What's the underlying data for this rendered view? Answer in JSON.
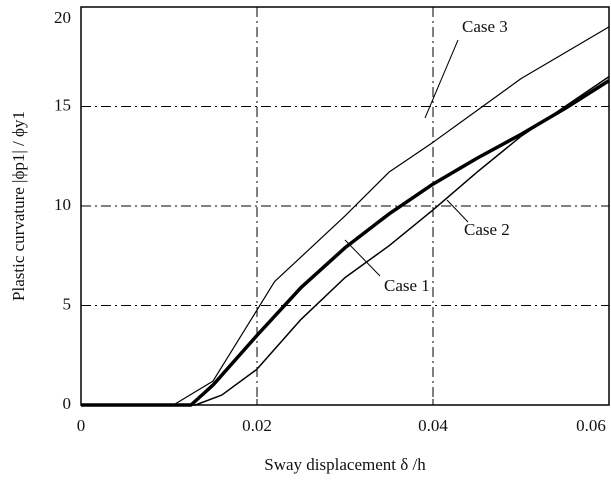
{
  "chart_data": {
    "type": "line",
    "x_label": "Sway displacement  δ /h",
    "y_label": "Plastic curvature  |ϕp1| / ϕy1",
    "xlim": [
      0,
      0.06
    ],
    "xticks": [
      0,
      0.02,
      0.04,
      0.06
    ],
    "ylim": [
      0,
      20
    ],
    "yticks": [
      0,
      5,
      10,
      15,
      20
    ],
    "grid": true,
    "series": [
      {
        "name": "Case 1",
        "color": "#000000",
        "x": [
          0,
          0.0125,
          0.015,
          0.02,
          0.025,
          0.03,
          0.035,
          0.04,
          0.045,
          0.05,
          0.055,
          0.06
        ],
        "values": [
          0,
          0,
          1.0,
          3.5,
          5.9,
          7.9,
          9.6,
          11.1,
          12.4,
          13.6,
          14.9,
          16.3
        ]
      },
      {
        "name": "Case 2",
        "color": "#000000",
        "x": [
          0,
          0.013,
          0.016,
          0.02,
          0.025,
          0.03,
          0.035,
          0.04,
          0.045,
          0.05,
          0.055,
          0.06
        ],
        "values": [
          0,
          0,
          0.5,
          1.8,
          4.3,
          6.4,
          8.0,
          9.8,
          11.7,
          13.5,
          15.0,
          16.5
        ]
      },
      {
        "name": "Case 3",
        "color": "#000000",
        "x": [
          0,
          0.0105,
          0.015,
          0.022,
          0.03,
          0.035,
          0.04,
          0.05,
          0.06
        ],
        "values": [
          0,
          0,
          1.2,
          6.2,
          9.5,
          11.7,
          13.2,
          16.4,
          19.0
        ]
      }
    ]
  }
}
